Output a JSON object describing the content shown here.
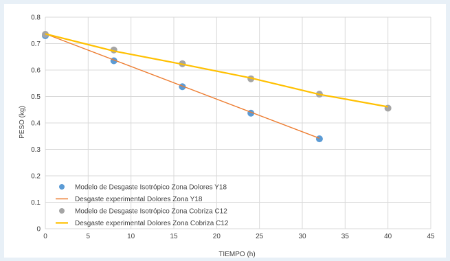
{
  "chart_data": {
    "type": "scatter",
    "xlabel": "TIEMPO (h)",
    "ylabel": "PESO (kg)",
    "xlim": [
      0,
      45
    ],
    "ylim": [
      0,
      0.8
    ],
    "xticks": [
      0,
      5,
      10,
      15,
      20,
      25,
      30,
      35,
      40,
      45
    ],
    "yticks": [
      0,
      0.1,
      0.2,
      0.3,
      0.4,
      0.5,
      0.6,
      0.7,
      0.8
    ],
    "grid": true,
    "legend_position": "bottom-left",
    "series": [
      {
        "name": "Modelo de Desgaste Isotrópico Zona Dolores Y18",
        "kind": "markers",
        "color": "#5b9bd5",
        "x": [
          0,
          8,
          16,
          24,
          32
        ],
        "y": [
          0.73,
          0.635,
          0.537,
          0.437,
          0.34
        ]
      },
      {
        "name": "Desgaste experimental Dolores Zona Y18",
        "kind": "line",
        "color": "#ed7d31",
        "x": [
          0,
          32
        ],
        "y": [
          0.737,
          0.342
        ]
      },
      {
        "name": "Modelo de Desgaste Isotrópico Zona Cobriza C12",
        "kind": "markers",
        "color": "#a5a5a5",
        "x": [
          0,
          8,
          16,
          24,
          32,
          40
        ],
        "y": [
          0.735,
          0.676,
          0.624,
          0.567,
          0.509,
          0.456
        ]
      },
      {
        "name": "Desgaste experimental Dolores Zona Cobriza C12",
        "kind": "line",
        "color": "#ffc000",
        "x": [
          0,
          8,
          16,
          24,
          32,
          40
        ],
        "y": [
          0.737,
          0.672,
          0.622,
          0.57,
          0.508,
          0.461
        ]
      }
    ]
  }
}
